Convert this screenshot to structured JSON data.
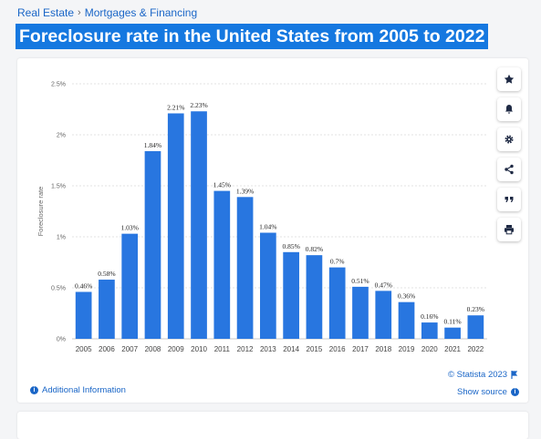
{
  "breadcrumb": {
    "items": [
      "Real Estate",
      "Mortgages & Financing"
    ],
    "separator": "›"
  },
  "title": "Foreclosure rate in the United States from 2005 to 2022",
  "colors": {
    "bar": "#2876e0",
    "title_bg": "#1578e0",
    "link": "#1a66c7"
  },
  "toolbar": {
    "icons": [
      "star-icon",
      "bell-icon",
      "gear-icon",
      "share-icon",
      "quote-icon",
      "print-icon"
    ]
  },
  "footer": {
    "copyright": "© Statista 2023",
    "additional_info": "Additional Information",
    "show_source": "Show source"
  },
  "chart_data": {
    "type": "bar",
    "ylabel": "Foreclosure rate",
    "ylim": [
      0,
      2.5
    ],
    "yticks": [
      0,
      0.5,
      1,
      1.5,
      2,
      2.5
    ],
    "ytick_labels": [
      "0%",
      "0.5%",
      "1%",
      "1.5%",
      "2%",
      "2.5%"
    ],
    "grid": true,
    "categories": [
      "2005",
      "2006",
      "2007",
      "2008",
      "2009",
      "2010",
      "2011",
      "2012",
      "2013",
      "2014",
      "2015",
      "2016",
      "2017",
      "2018",
      "2019",
      "2020",
      "2021",
      "2022"
    ],
    "values": [
      0.46,
      0.58,
      1.03,
      1.84,
      2.21,
      2.23,
      1.45,
      1.39,
      1.04,
      0.85,
      0.82,
      0.7,
      0.51,
      0.47,
      0.36,
      0.16,
      0.11,
      0.23
    ],
    "labels": [
      "0.46%",
      "0.58%",
      "1.03%",
      "1.84%",
      "2.21%",
      "2.23%",
      "1.45%",
      "1.39%",
      "1.04%",
      "0.85%",
      "0.82%",
      "0.7%",
      "0.51%",
      "0.47%",
      "0.36%",
      "0.16%",
      "0.11%",
      "0.23%"
    ]
  }
}
